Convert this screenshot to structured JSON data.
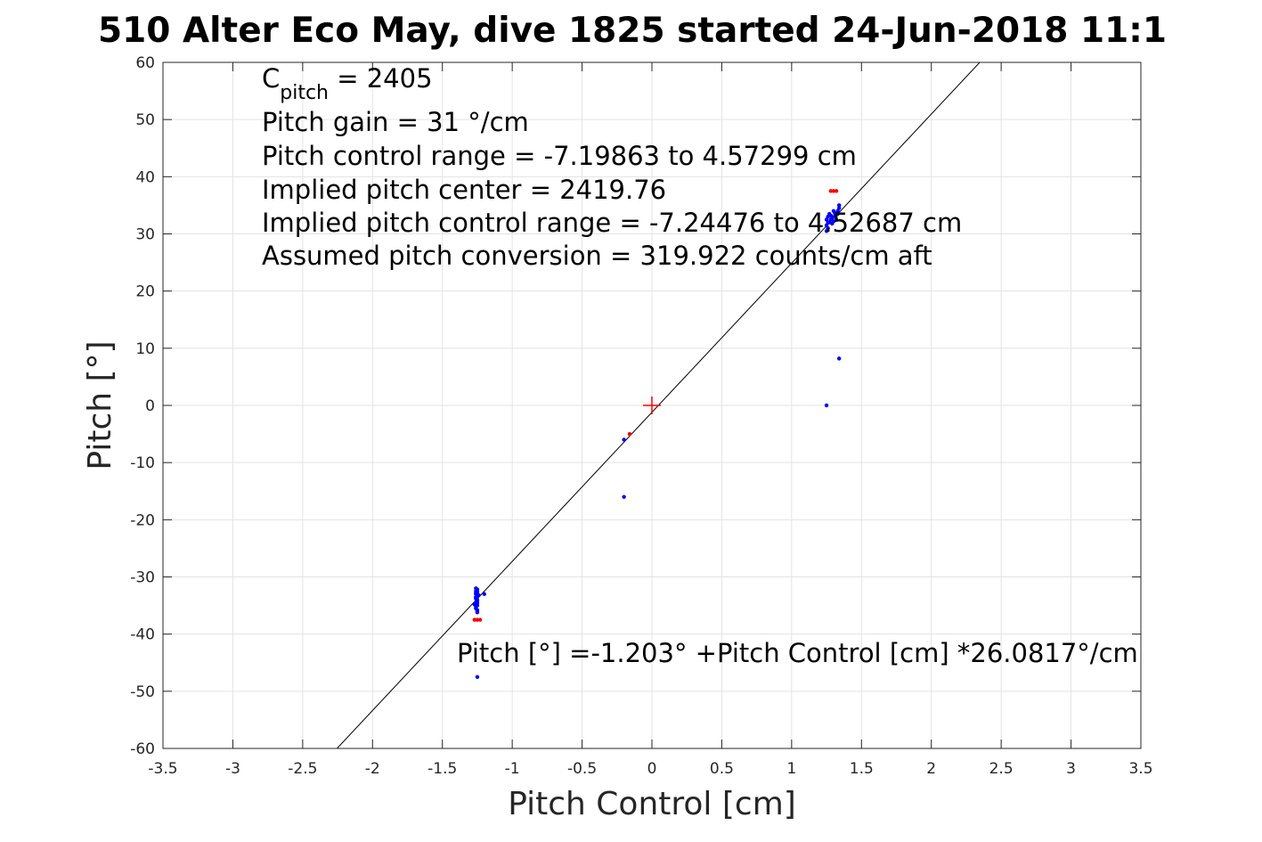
{
  "chart_data": {
    "type": "scatter",
    "title": "510 Alter Eco May, dive 1825 started 24-Jun-2018 11:1",
    "xlabel": "Pitch Control [cm]",
    "ylabel": "Pitch [°]",
    "xlim": [
      -3.5,
      3.5
    ],
    "ylim": [
      -60,
      60
    ],
    "xticks": [
      -3.5,
      -3,
      -2.5,
      -2,
      -1.5,
      -1,
      -0.5,
      0,
      0.5,
      1,
      1.5,
      2,
      2.5,
      3,
      3.5
    ],
    "yticks": [
      -60,
      -50,
      -40,
      -30,
      -20,
      -10,
      0,
      10,
      20,
      30,
      40,
      50,
      60
    ],
    "xtick_labels": [
      "-3.5",
      "-3",
      "-2.5",
      "-2",
      "-1.5",
      "-1",
      "-0.5",
      "0",
      "0.5",
      "1",
      "1.5",
      "2",
      "2.5",
      "3",
      "3.5"
    ],
    "ytick_labels": [
      "-60",
      "-50",
      "-40",
      "-30",
      "-20",
      "-10",
      "0",
      "10",
      "20",
      "30",
      "40",
      "50",
      "60"
    ],
    "grid": true,
    "annotations": {
      "c_pitch_base": "C",
      "c_pitch_sub": "pitch",
      "c_pitch_value": " = 2405",
      "lines": [
        "Pitch gain = 31 °/cm",
        "Pitch control range = -7.19863 to 4.57299 cm",
        "Implied pitch center = 2419.76",
        "Implied pitch control range = -7.24476 to 4.52687 cm",
        "Assumed pitch conversion = 319.922 counts/cm aft"
      ],
      "fit_equation": "Pitch [°] =-1.203° +Pitch Control [cm] *26.0817°/cm"
    },
    "fit_line": {
      "intercept": -1.203,
      "slope": 26.0817,
      "color": "#000000"
    },
    "center_marker": {
      "x": 0,
      "y": 0,
      "color": "#ff0000"
    },
    "series": [
      {
        "color": "#0000ff",
        "x": [
          -1.26,
          -1.26,
          -1.25,
          -1.26,
          -1.25,
          -1.26,
          -1.25,
          -1.26,
          -1.25,
          -1.26,
          -1.25,
          -1.26,
          -1.25,
          -1.26,
          -1.25,
          -1.26,
          -1.25,
          -1.26,
          -1.24,
          -1.25,
          -1.27,
          -1.25,
          -1.26,
          -1.25,
          -1.2,
          -1.25,
          -0.2,
          -0.2,
          1.25,
          1.25,
          1.26,
          1.25,
          1.26,
          1.27,
          1.28,
          1.29,
          1.3,
          1.31,
          1.32,
          1.33,
          1.34,
          1.26,
          1.27,
          1.28,
          1.29,
          1.3,
          1.31,
          1.33,
          1.34,
          1.34,
          1.25,
          1.34
        ],
        "y": [
          -32,
          -32.5,
          -33,
          -33.5,
          -34,
          -34.5,
          -35,
          -35.5,
          -36,
          -33,
          -34,
          -35,
          -32.2,
          -33.8,
          -34.6,
          -35.2,
          -36.2,
          -32.8,
          -33.2,
          -34.2,
          -34.8,
          -35.8,
          -33.6,
          -32.6,
          -33,
          -47.5,
          -6,
          -16,
          30.5,
          31.5,
          32,
          32.5,
          33,
          33.5,
          32.5,
          33,
          34,
          33,
          32.5,
          33.5,
          34.5,
          31,
          32,
          33.2,
          31.8,
          32.2,
          33.6,
          34,
          35,
          35,
          0,
          8.2
        ]
      },
      {
        "color": "#ff0000",
        "x": [
          -1.27,
          -1.25,
          -1.23,
          1.28,
          1.3,
          1.32,
          -0.16
        ],
        "y": [
          -37.5,
          -37.5,
          -37.5,
          37.5,
          37.5,
          37.5,
          -5
        ]
      }
    ]
  }
}
